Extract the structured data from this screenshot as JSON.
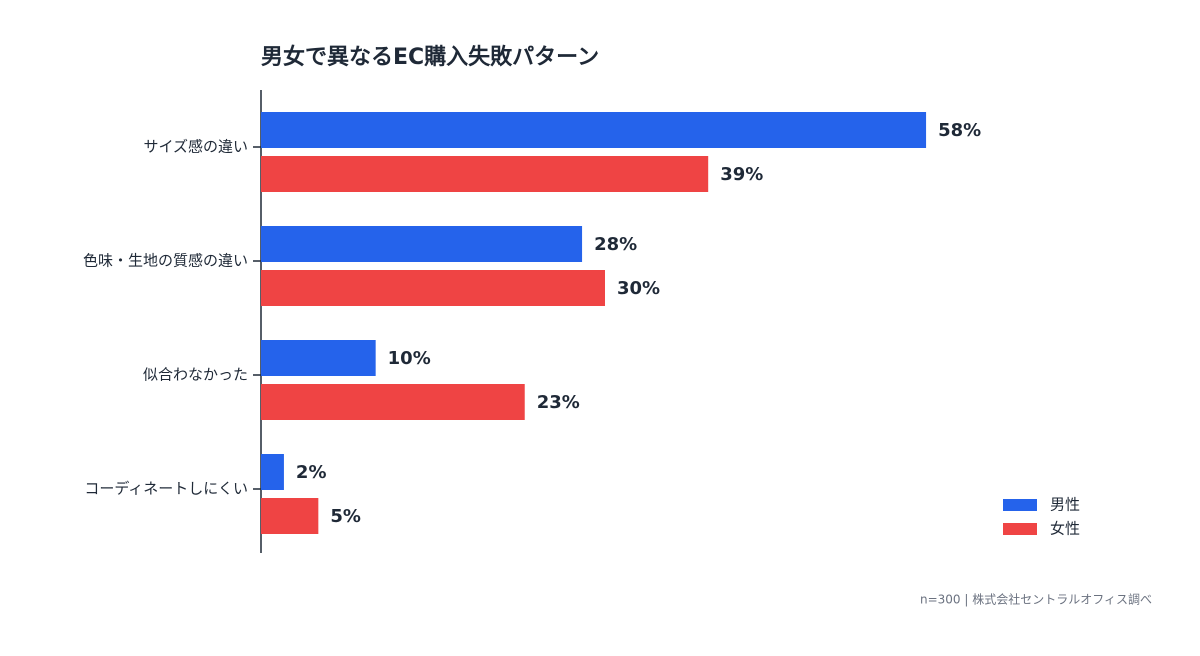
{
  "chart_data": {
    "type": "bar",
    "orientation": "horizontal",
    "title": "男女で異なるEC購入失敗パターン",
    "categories": [
      "サイズ感の違い",
      "色味・生地の質感の違い",
      "似合わなかった",
      "コーディネートしにくい"
    ],
    "series": [
      {
        "name": "男性",
        "color": "#2563eb",
        "values": [
          58,
          28,
          10,
          2
        ],
        "value_labels": [
          "58%",
          "28%",
          "10%",
          "2%"
        ]
      },
      {
        "name": "女性",
        "color": "#ef4444",
        "values": [
          39,
          30,
          23,
          5
        ],
        "value_labels": [
          "39%",
          "30%",
          "23%",
          "5%"
        ]
      }
    ],
    "xlim": [
      0,
      60
    ],
    "legend": "bottom-right",
    "source": "n=300 | 株式会社セントラルオフィス調べ"
  }
}
